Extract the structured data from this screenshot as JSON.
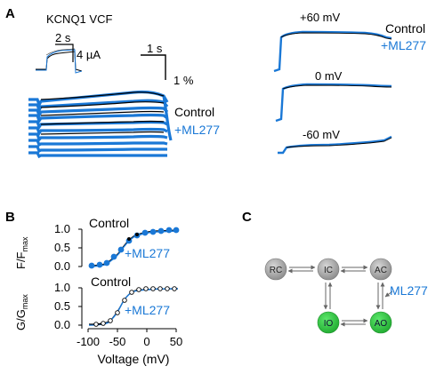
{
  "colors": {
    "control": "#000000",
    "ml277": "#1a78d6",
    "state_gray": "#9a9a9a",
    "state_green": "#27c13a",
    "fit": "#222222"
  },
  "panel_a": {
    "label": "A",
    "title": "KCNQ1 VCF",
    "inset_time": "2 s",
    "inset_current": "4 µA",
    "scale_time": "1 s",
    "scale_pct": "1 %",
    "legend_control": "Control",
    "legend_ml277": "+ML277",
    "right_labels": {
      "v60": "+60 mV",
      "v0": "0 mV",
      "vm60": "-60 mV"
    },
    "right_legend_control": "Control",
    "right_legend_ml277": "+ML277"
  },
  "panel_b": {
    "label": "B",
    "top_ylabel_main": "F/F",
    "top_ylabel_sub": "max",
    "bottom_ylabel_main": "G/G",
    "bottom_ylabel_sub": "max",
    "top_legend_control": "Control",
    "top_legend_ml277": "+ML277",
    "bottom_legend_control": "Control",
    "bottom_legend_ml277": "+ML277",
    "yticks": [
      "1.0",
      "0.5",
      "0.0"
    ],
    "xticks": [
      "-100",
      "-50",
      "0",
      "50"
    ],
    "xlabel": "Voltage (mV)"
  },
  "panel_c": {
    "label": "C",
    "states": {
      "rc": "RC",
      "ic": "IC",
      "ac": "AC",
      "io": "IO",
      "ao": "AO"
    },
    "drug_label": "ML277"
  }
}
